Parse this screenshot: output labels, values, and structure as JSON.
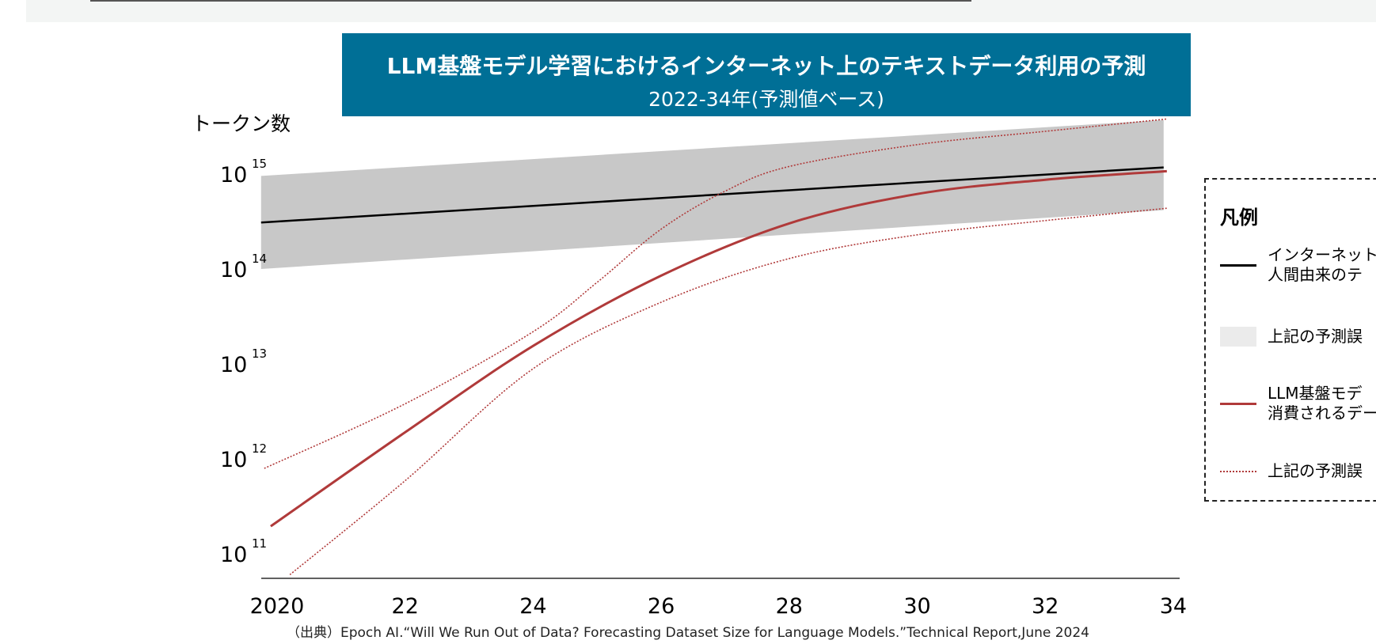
{
  "title": "LLM基盤モデル学習におけるインターネット上のテキストデータ利用の予測",
  "subtitle": "2022-34年(予測値ベース)",
  "source": "（出典）Epoch AI.“Will We Run Out of Data? Forecasting Dataset Size for Language Models.”Technical Report,June 2024",
  "legend": {
    "title": "凡例",
    "items": [
      {
        "lines": [
          "インターネット上",
          "人間由来のテ"
        ],
        "style": "solid-black"
      },
      {
        "lines": [
          "上記の予測誤"
        ],
        "style": "gray-band"
      },
      {
        "lines": [
          "LLM基盤モデ",
          "消費されるデー"
        ],
        "style": "solid-red"
      },
      {
        "lines": [
          "上記の予測誤"
        ],
        "style": "dotted-red"
      }
    ]
  },
  "chart_data": {
    "type": "line",
    "title": "LLM基盤モデル学習におけるインターネット上のテキストデータ利用の予測",
    "subtitle": "2022-34年(予測値ベース)",
    "ylabel": "トークン数",
    "xlabel": "",
    "y_scale": "log",
    "ylim": [
      10.9,
      15.7
    ],
    "y_ticks": [
      {
        "exp": "15"
      },
      {
        "exp": "14"
      },
      {
        "exp": "13"
      },
      {
        "exp": "12"
      },
      {
        "exp": "11"
      }
    ],
    "x_ticks": [
      "2020",
      "22",
      "24",
      "26",
      "28",
      "30",
      "32",
      "34"
    ],
    "xlim": [
      2019.6,
      2034.4
    ],
    "grid": false,
    "legend_position": "right",
    "colors": {
      "stock": "#000000",
      "band": "#c8c8c8",
      "usage": "#b03a3a"
    },
    "series": [
      {
        "key": "stock",
        "x": [
          2019.75,
          2033.85
        ],
        "log10_y": [
          14.49,
          15.07
        ]
      },
      {
        "key": "stock_band_upper",
        "x": [
          2019.75,
          2033.85
        ],
        "log10_y": [
          14.98,
          15.57
        ]
      },
      {
        "key": "stock_band_lower",
        "x": [
          2019.75,
          2033.85
        ],
        "log10_y": [
          14.0,
          14.62
        ]
      },
      {
        "key": "usage",
        "x": [
          2019.9,
          2022,
          2024,
          2026,
          2028,
          2030,
          2032,
          2033.9
        ],
        "log10_y": [
          11.29,
          12.28,
          13.19,
          13.93,
          14.48,
          14.79,
          14.94,
          15.03
        ]
      },
      {
        "key": "usage_upper",
        "x": [
          2019.8,
          2022,
          2024,
          2025,
          2026,
          2027,
          2028,
          2030,
          2032,
          2033.9
        ],
        "log10_y": [
          11.9,
          12.58,
          13.34,
          13.86,
          14.42,
          14.82,
          15.08,
          15.31,
          15.45,
          15.58
        ]
      },
      {
        "key": "usage_lower",
        "x": [
          2020.2,
          2022,
          2024,
          2026,
          2028,
          2030,
          2032,
          2033.9
        ],
        "log10_y": [
          10.78,
          11.77,
          12.95,
          13.65,
          14.11,
          14.36,
          14.51,
          14.64
        ]
      }
    ]
  }
}
